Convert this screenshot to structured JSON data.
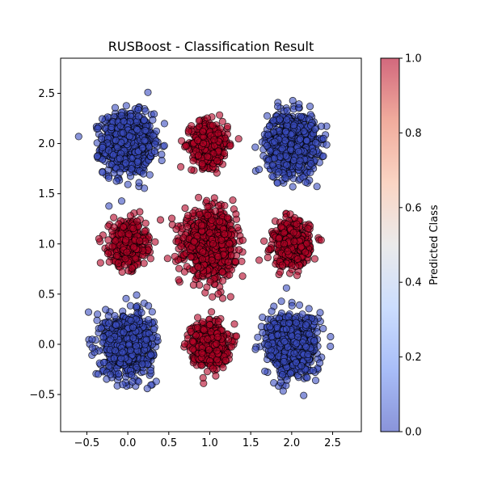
{
  "chart_data": {
    "type": "scatter",
    "title": "RUSBoost - Classification Result",
    "xlabel": "",
    "ylabel": "",
    "xlim": [
      -0.82,
      2.85
    ],
    "ylim": [
      -0.87,
      2.85
    ],
    "xticks": [
      -0.5,
      0.0,
      0.5,
      1.0,
      1.5,
      2.0,
      2.5
    ],
    "xtick_labels": [
      "−0.5",
      "0.0",
      "0.5",
      "1.0",
      "1.5",
      "2.0",
      "2.5"
    ],
    "yticks": [
      -0.5,
      0.0,
      0.5,
      1.0,
      1.5,
      2.0,
      2.5
    ],
    "ytick_labels": [
      "−0.5",
      "0.0",
      "0.5",
      "1.0",
      "1.5",
      "2.0",
      "2.5"
    ],
    "colormap": "coolwarm",
    "colormap_colors": [
      "#3b4cc0",
      "#6f92f3",
      "#aac7fd",
      "#dddddd",
      "#f7b89c",
      "#e7745b",
      "#b40426"
    ],
    "point_alpha": 0.6,
    "point_edge_color": "#000000",
    "grid": false,
    "colorbar": {
      "label": "Predicted Class",
      "range": [
        0.0,
        1.0
      ],
      "ticks": [
        0.0,
        0.2,
        0.4,
        0.6,
        0.8,
        1.0
      ],
      "tick_labels": [
        "0.0",
        "0.2",
        "0.4",
        "0.6",
        "0.8",
        "1.0"
      ]
    },
    "clusters": [
      {
        "center": [
          0.0,
          2.0
        ],
        "spread": 0.27,
        "class": 0,
        "approx_points": 900
      },
      {
        "center": [
          1.0,
          2.0
        ],
        "spread": 0.2,
        "class": 1,
        "approx_points": 450
      },
      {
        "center": [
          2.0,
          2.0
        ],
        "spread": 0.27,
        "class": 0,
        "approx_points": 900
      },
      {
        "center": [
          0.0,
          1.0
        ],
        "spread": 0.2,
        "class": 1,
        "approx_points": 450
      },
      {
        "center": [
          1.0,
          1.0
        ],
        "spread": 0.28,
        "class": 1,
        "approx_points": 900
      },
      {
        "center": [
          2.0,
          1.0
        ],
        "spread": 0.2,
        "class": 1,
        "approx_points": 450
      },
      {
        "center": [
          0.0,
          0.0
        ],
        "spread": 0.27,
        "class": 0,
        "approx_points": 900
      },
      {
        "center": [
          1.0,
          0.0
        ],
        "spread": 0.2,
        "class": 1,
        "approx_points": 450
      },
      {
        "center": [
          2.0,
          0.0
        ],
        "spread": 0.27,
        "class": 0,
        "approx_points": 900
      }
    ]
  }
}
